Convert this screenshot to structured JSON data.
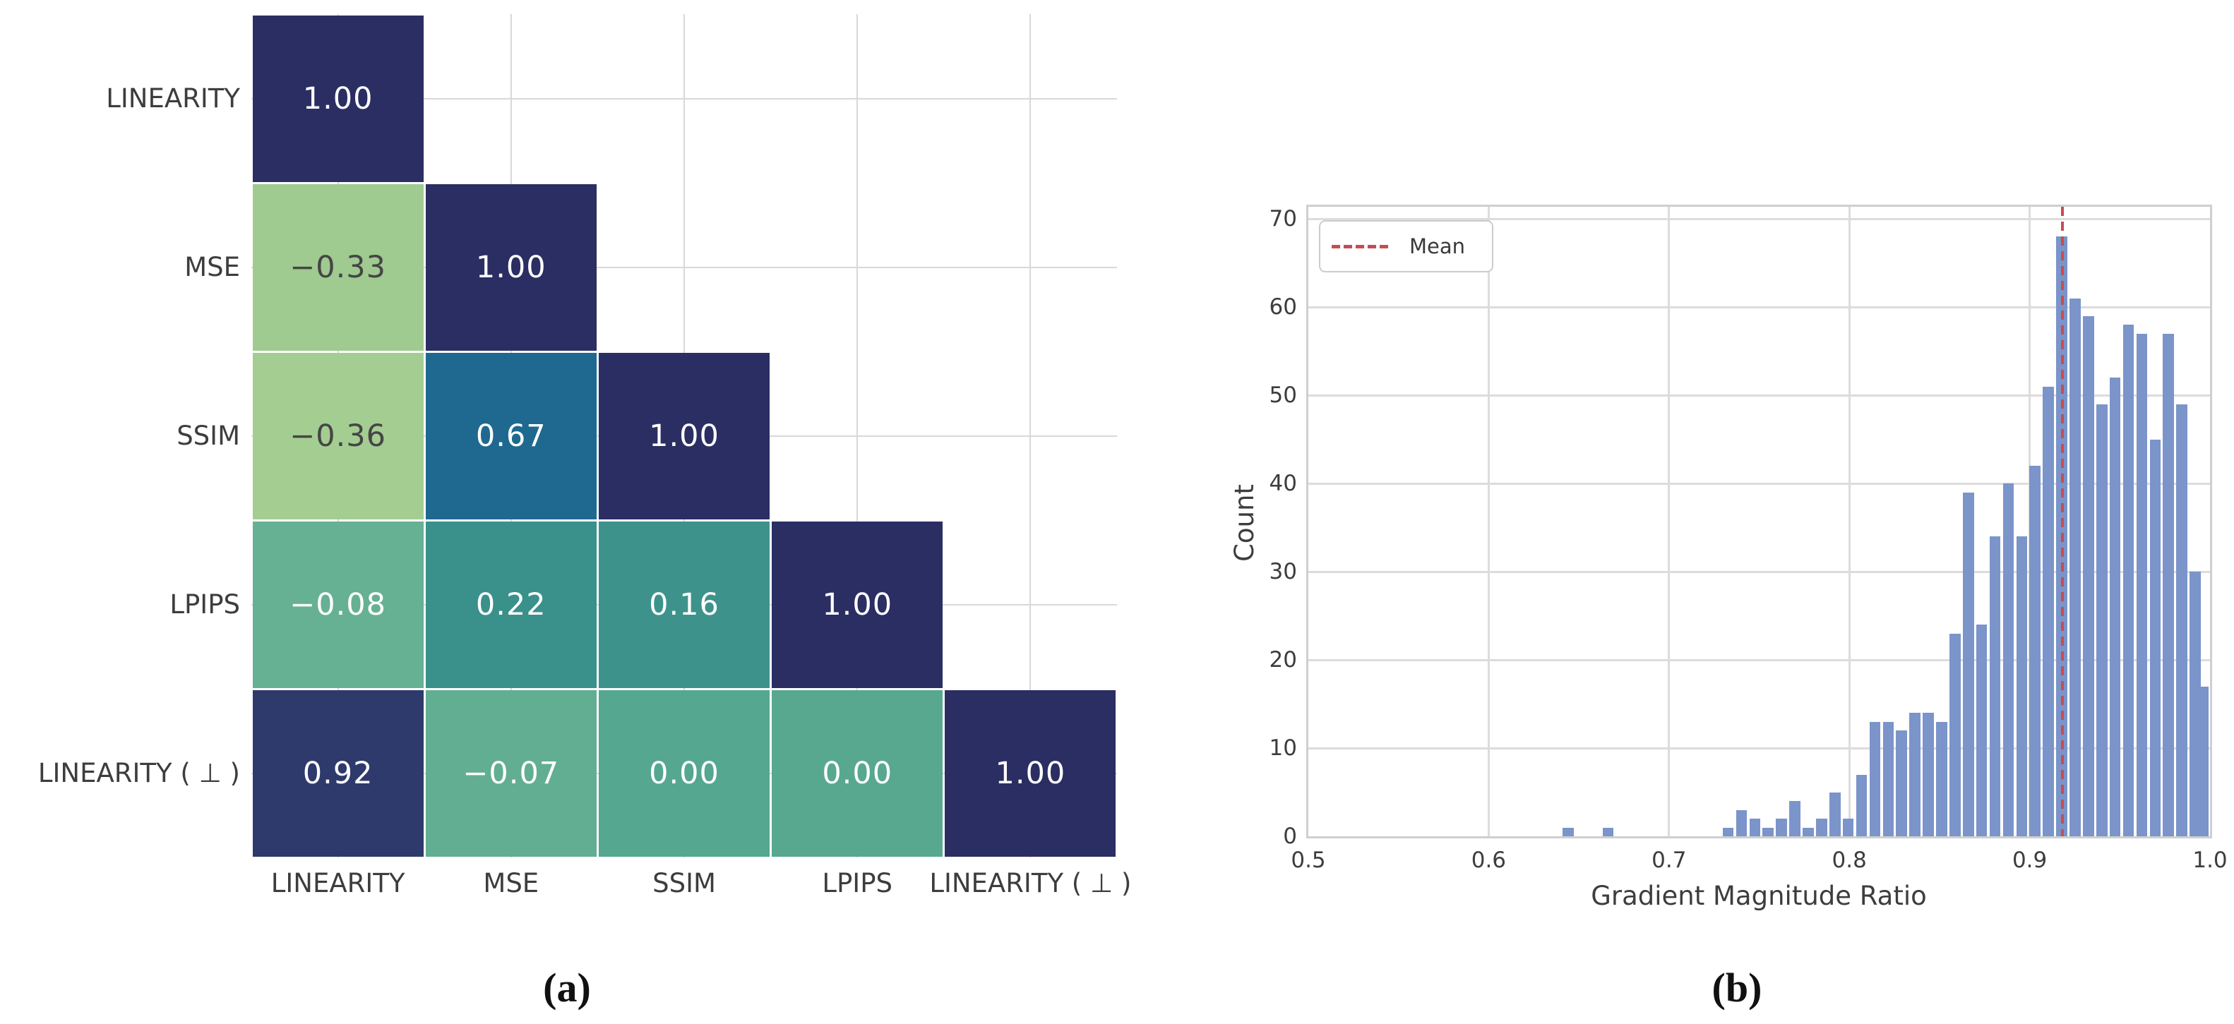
{
  "figure": {
    "caption_a": "(a)",
    "caption_b": "(b)"
  },
  "chart_data": [
    {
      "type": "heatmap",
      "title": "",
      "description": "Lower-triangular correlation matrix",
      "labels": [
        "LINEARITY",
        "MSE",
        "SSIM",
        "LPIPS",
        "LINEARITY ( ⊥ )"
      ],
      "matrix": [
        [
          1.0
        ],
        [
          -0.33,
          1.0
        ],
        [
          -0.36,
          0.67,
          1.0
        ],
        [
          -0.08,
          0.22,
          0.16,
          1.0
        ],
        [
          0.92,
          -0.07,
          0.0,
          0.0,
          1.0
        ]
      ],
      "cells": [
        {
          "r": 0,
          "c": 0,
          "text": "1.00",
          "bg": "#2b2e63",
          "fg": "#ffffff"
        },
        {
          "r": 1,
          "c": 0,
          "text": "−0.33",
          "bg": "#9fca90",
          "fg": "#454545"
        },
        {
          "r": 1,
          "c": 1,
          "text": "1.00",
          "bg": "#2b2e63",
          "fg": "#ffffff"
        },
        {
          "r": 2,
          "c": 0,
          "text": "−0.36",
          "bg": "#a4cd92",
          "fg": "#454545"
        },
        {
          "r": 2,
          "c": 1,
          "text": "0.67",
          "bg": "#1f6991",
          "fg": "#ffffff"
        },
        {
          "r": 2,
          "c": 2,
          "text": "1.00",
          "bg": "#2b2e63",
          "fg": "#ffffff"
        },
        {
          "r": 3,
          "c": 0,
          "text": "−0.08",
          "bg": "#66b093",
          "fg": "#ffffff"
        },
        {
          "r": 3,
          "c": 1,
          "text": "0.22",
          "bg": "#3a908b",
          "fg": "#ffffff"
        },
        {
          "r": 3,
          "c": 2,
          "text": "0.16",
          "bg": "#3d938c",
          "fg": "#ffffff"
        },
        {
          "r": 3,
          "c": 3,
          "text": "1.00",
          "bg": "#2b2e63",
          "fg": "#ffffff"
        },
        {
          "r": 4,
          "c": 0,
          "text": "0.92",
          "bg": "#2e3a6c",
          "fg": "#ffffff"
        },
        {
          "r": 4,
          "c": 1,
          "text": "−0.07",
          "bg": "#62ae93",
          "fg": "#ffffff"
        },
        {
          "r": 4,
          "c": 2,
          "text": "0.00",
          "bg": "#55a78f",
          "fg": "#ffffff"
        },
        {
          "r": 4,
          "c": 3,
          "text": "0.00",
          "bg": "#57a88f",
          "fg": "#ffffff"
        },
        {
          "r": 4,
          "c": 4,
          "text": "1.00",
          "bg": "#2b2e63",
          "fg": "#ffffff"
        }
      ],
      "grid_color": "#d8d8d8"
    },
    {
      "type": "bar",
      "subtype": "histogram",
      "title": "",
      "xlabel": "Gradient Magnitude Ratio",
      "ylabel": "Count",
      "xlim": [
        0.5,
        1.0
      ],
      "ylim": [
        0,
        71.4
      ],
      "grid": true,
      "xticks": [
        "0.5",
        "0.6",
        "0.7",
        "0.8",
        "0.9",
        "1.0"
      ],
      "xtick_values": [
        0.5,
        0.6,
        0.7,
        0.8,
        0.9,
        1.0
      ],
      "yticks": [
        "0",
        "10",
        "20",
        "30",
        "40",
        "50",
        "60",
        "70"
      ],
      "ytick_values": [
        0,
        10,
        20,
        30,
        40,
        50,
        60,
        70
      ],
      "legend": {
        "label": "Mean",
        "line_color": "#c44e52",
        "line_style": "dashed",
        "position": "upper left"
      },
      "mean_value": 0.918,
      "bar_color": "#7b94c9",
      "total_samples": 1000,
      "bin_width": 0.0074,
      "bins": [
        {
          "x": 0.644,
          "count": 1
        },
        {
          "x": 0.6662,
          "count": 1
        },
        {
          "x": 0.7328,
          "count": 1
        },
        {
          "x": 0.7402,
          "count": 3
        },
        {
          "x": 0.7476,
          "count": 2
        },
        {
          "x": 0.755,
          "count": 1
        },
        {
          "x": 0.7624,
          "count": 2
        },
        {
          "x": 0.7698,
          "count": 4
        },
        {
          "x": 0.7772,
          "count": 1
        },
        {
          "x": 0.7846,
          "count": 2
        },
        {
          "x": 0.792,
          "count": 5
        },
        {
          "x": 0.7994,
          "count": 2
        },
        {
          "x": 0.8068,
          "count": 7
        },
        {
          "x": 0.8142,
          "count": 13
        },
        {
          "x": 0.8216,
          "count": 13
        },
        {
          "x": 0.829,
          "count": 12
        },
        {
          "x": 0.8364,
          "count": 14
        },
        {
          "x": 0.8438,
          "count": 14
        },
        {
          "x": 0.8512,
          "count": 13
        },
        {
          "x": 0.8586,
          "count": 23
        },
        {
          "x": 0.866,
          "count": 39
        },
        {
          "x": 0.8734,
          "count": 24
        },
        {
          "x": 0.8808,
          "count": 34
        },
        {
          "x": 0.8882,
          "count": 40
        },
        {
          "x": 0.8956,
          "count": 34
        },
        {
          "x": 0.903,
          "count": 42
        },
        {
          "x": 0.9104,
          "count": 51
        },
        {
          "x": 0.9178,
          "count": 68
        },
        {
          "x": 0.9252,
          "count": 61
        },
        {
          "x": 0.9326,
          "count": 59
        },
        {
          "x": 0.94,
          "count": 49
        },
        {
          "x": 0.9474,
          "count": 52
        },
        {
          "x": 0.9548,
          "count": 58
        },
        {
          "x": 0.9622,
          "count": 57
        },
        {
          "x": 0.9696,
          "count": 45
        },
        {
          "x": 0.977,
          "count": 57
        },
        {
          "x": 0.9844,
          "count": 49
        },
        {
          "x": 0.9918,
          "count": 30
        },
        {
          "x": 0.996,
          "count": 17
        }
      ]
    }
  ]
}
